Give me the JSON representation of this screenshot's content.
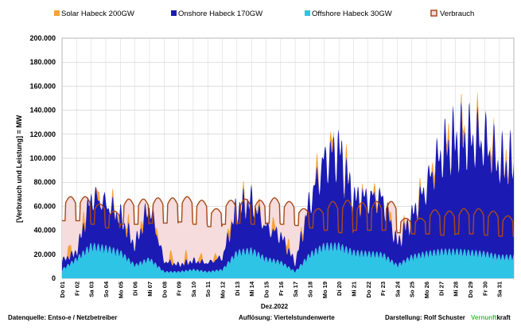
{
  "chart_data": {
    "type": "area",
    "title": "",
    "ylabel": "[Verbrauch und Leistung] =  MW",
    "xlabel": "Dez.2022",
    "ylim": [
      0,
      200000
    ],
    "yticks": [
      "0",
      "20.000",
      "40.000",
      "60.000",
      "80.000",
      "100.000",
      "120.000",
      "140.000",
      "160.000",
      "180.000",
      "200.000"
    ],
    "x_tick_labels": [
      "Do 01",
      "Fr 02",
      "Sa 03",
      "So 04",
      "Mo 05",
      "Di 06",
      "Mi 07",
      "Do 08",
      "Fr 09",
      "Sa 10",
      "So 11",
      "Mo 12",
      "Di 13",
      "Mi 14",
      "Do 15",
      "Fr 16",
      "Sa 17",
      "So 18",
      "Mo 19",
      "Di 20",
      "Mi 21",
      "Do 22",
      "Fr 23",
      "Sa 24",
      "So 25",
      "Mo 26",
      "Di 27",
      "Mi 28",
      "Do 29",
      "Fr 30",
      "Sa 31"
    ],
    "grid": true,
    "legend_position": "top",
    "series": [
      {
        "name": "Solar Habeck 200GW",
        "color": "#f7a23a",
        "daily_peak": [
          12000,
          10000,
          8000,
          7000,
          9000,
          8000,
          6000,
          10000,
          8000,
          7000,
          6000,
          9000,
          7000,
          6000,
          10000,
          9000,
          6000,
          12000,
          11000,
          12000,
          9000,
          10000,
          8000,
          6000,
          9000,
          12000,
          14000,
          15000,
          12000,
          14000,
          10000
        ]
      },
      {
        "name": "Onshore Habeck 170GW",
        "color": "#1b1bb3",
        "daily_peak": [
          10000,
          8000,
          55000,
          50000,
          40000,
          22000,
          60000,
          12000,
          8000,
          10000,
          10000,
          14000,
          50000,
          55000,
          35000,
          30000,
          10000,
          60000,
          95000,
          108000,
          60000,
          62000,
          62000,
          25000,
          45000,
          75000,
          110000,
          125000,
          128000,
          125000,
          105000
        ]
      },
      {
        "name": "Offshore Habeck 30GW",
        "color": "#2ec4e6",
        "daily_peak": [
          8000,
          18000,
          30000,
          28000,
          24000,
          12000,
          18000,
          6000,
          6000,
          8000,
          6000,
          8000,
          24000,
          26000,
          18000,
          15000,
          6000,
          22000,
          30000,
          30000,
          24000,
          23000,
          22000,
          12000,
          20000,
          23000,
          25000,
          25000,
          24000,
          23000,
          20000
        ]
      },
      {
        "name": "Verbrauch",
        "color": "#a84a18",
        "daily_peak": [
          68000,
          68000,
          62000,
          56000,
          66000,
          66000,
          67000,
          67000,
          68000,
          65000,
          58000,
          65000,
          66000,
          65000,
          67000,
          64000,
          58000,
          58000,
          64000,
          65000,
          63000,
          64000,
          64000,
          50000,
          50000,
          57000,
          56000,
          58000,
          58000,
          56000,
          52000
        ],
        "daily_min": [
          48000,
          48000,
          45000,
          42000,
          45000,
          45000,
          46000,
          46000,
          47000,
          45000,
          43000,
          45000,
          46000,
          45000,
          46000,
          45000,
          44000,
          42000,
          40000,
          38000,
          40000,
          40000,
          40000,
          38000,
          37000,
          37000,
          36000,
          37000,
          37000,
          36000,
          35000
        ]
      }
    ]
  },
  "footer": {
    "source": "Datenquelle: Entso-e  / Netzbetreiber",
    "resolution": "Auflösung: Viertelstundenwerte",
    "author": "Darstellung:  Rolf Schuster",
    "brand_a": "Vernunft",
    "brand_b": "kraft"
  }
}
